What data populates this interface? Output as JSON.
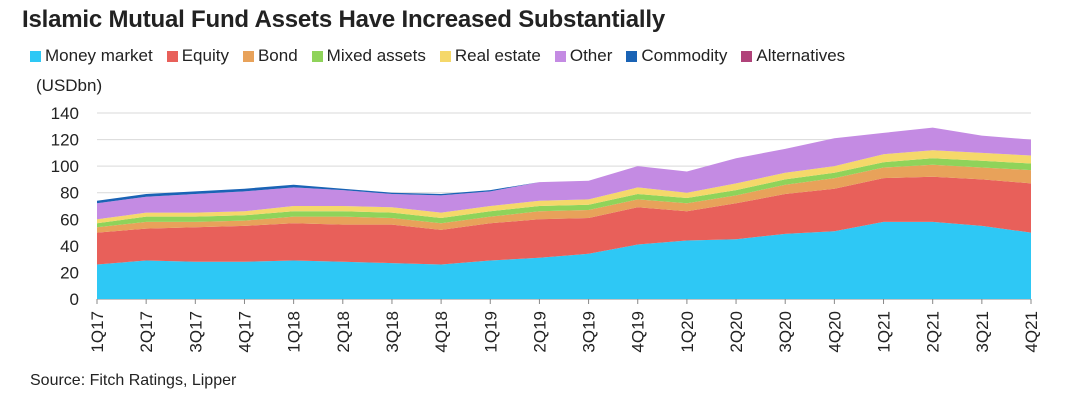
{
  "chart_data": {
    "type": "area",
    "title": "Islamic Mutual Fund Assets Have Increased Substantially",
    "ylabel": "(USDbn)",
    "xlabel": "",
    "ylim": [
      0,
      140
    ],
    "yticks": [
      0,
      20,
      40,
      60,
      80,
      100,
      120,
      140
    ],
    "grid": true,
    "legend_position": "top",
    "categories": [
      "1Q17",
      "2Q17",
      "3Q17",
      "4Q17",
      "1Q18",
      "2Q18",
      "3Q18",
      "4Q18",
      "1Q19",
      "2Q19",
      "3Q19",
      "4Q19",
      "1Q20",
      "2Q20",
      "3Q20",
      "4Q20",
      "1Q21",
      "2Q21",
      "3Q21",
      "4Q21"
    ],
    "series": [
      {
        "name": "Money market",
        "color": "#2ec8f5",
        "values": [
          26,
          29,
          28,
          28,
          29,
          28,
          27,
          26,
          29,
          31,
          34,
          41,
          44,
          45,
          49,
          51,
          58,
          58,
          55,
          50
        ]
      },
      {
        "name": "Equity",
        "color": "#e8605a",
        "values": [
          24,
          24,
          26,
          27,
          28,
          28,
          29,
          26,
          28,
          29,
          27,
          28,
          22,
          27,
          30,
          32,
          33,
          34,
          35,
          37
        ]
      },
      {
        "name": "Bond",
        "color": "#e8a25a",
        "values": [
          4,
          5,
          4,
          4,
          5,
          6,
          5,
          5,
          5,
          6,
          6,
          6,
          6,
          6,
          7,
          8,
          8,
          9,
          9,
          10
        ]
      },
      {
        "name": "Mixed assets",
        "color": "#8fd35a",
        "values": [
          3,
          4,
          4,
          4,
          4,
          4,
          4,
          4,
          4,
          4,
          4,
          4,
          4,
          4,
          4,
          4,
          4,
          5,
          5,
          5
        ]
      },
      {
        "name": "Real estate",
        "color": "#f5d86a",
        "values": [
          3,
          3,
          3,
          3,
          4,
          4,
          4,
          4,
          4,
          4,
          4,
          5,
          4,
          5,
          5,
          5,
          6,
          6,
          6,
          6
        ]
      },
      {
        "name": "Other",
        "color": "#c48be3",
        "values": [
          12,
          12,
          14,
          15,
          14,
          12,
          10,
          13,
          11,
          14,
          14,
          16,
          16,
          19,
          18,
          21,
          16,
          17,
          13,
          12
        ]
      },
      {
        "name": "Commodity",
        "color": "#1a63b5",
        "values": [
          2,
          2,
          2,
          2,
          2,
          1,
          1,
          1,
          1,
          0,
          0,
          0,
          0,
          0,
          0,
          0,
          0,
          0,
          0,
          0
        ]
      },
      {
        "name": "Alternatives",
        "color": "#b0437a",
        "values": [
          0,
          0,
          0,
          0,
          0,
          0,
          0,
          0,
          0,
          0,
          0,
          0,
          0,
          0,
          0,
          0,
          0,
          0,
          0,
          0
        ]
      }
    ]
  },
  "source": "Source: Fitch Ratings, Lipper"
}
